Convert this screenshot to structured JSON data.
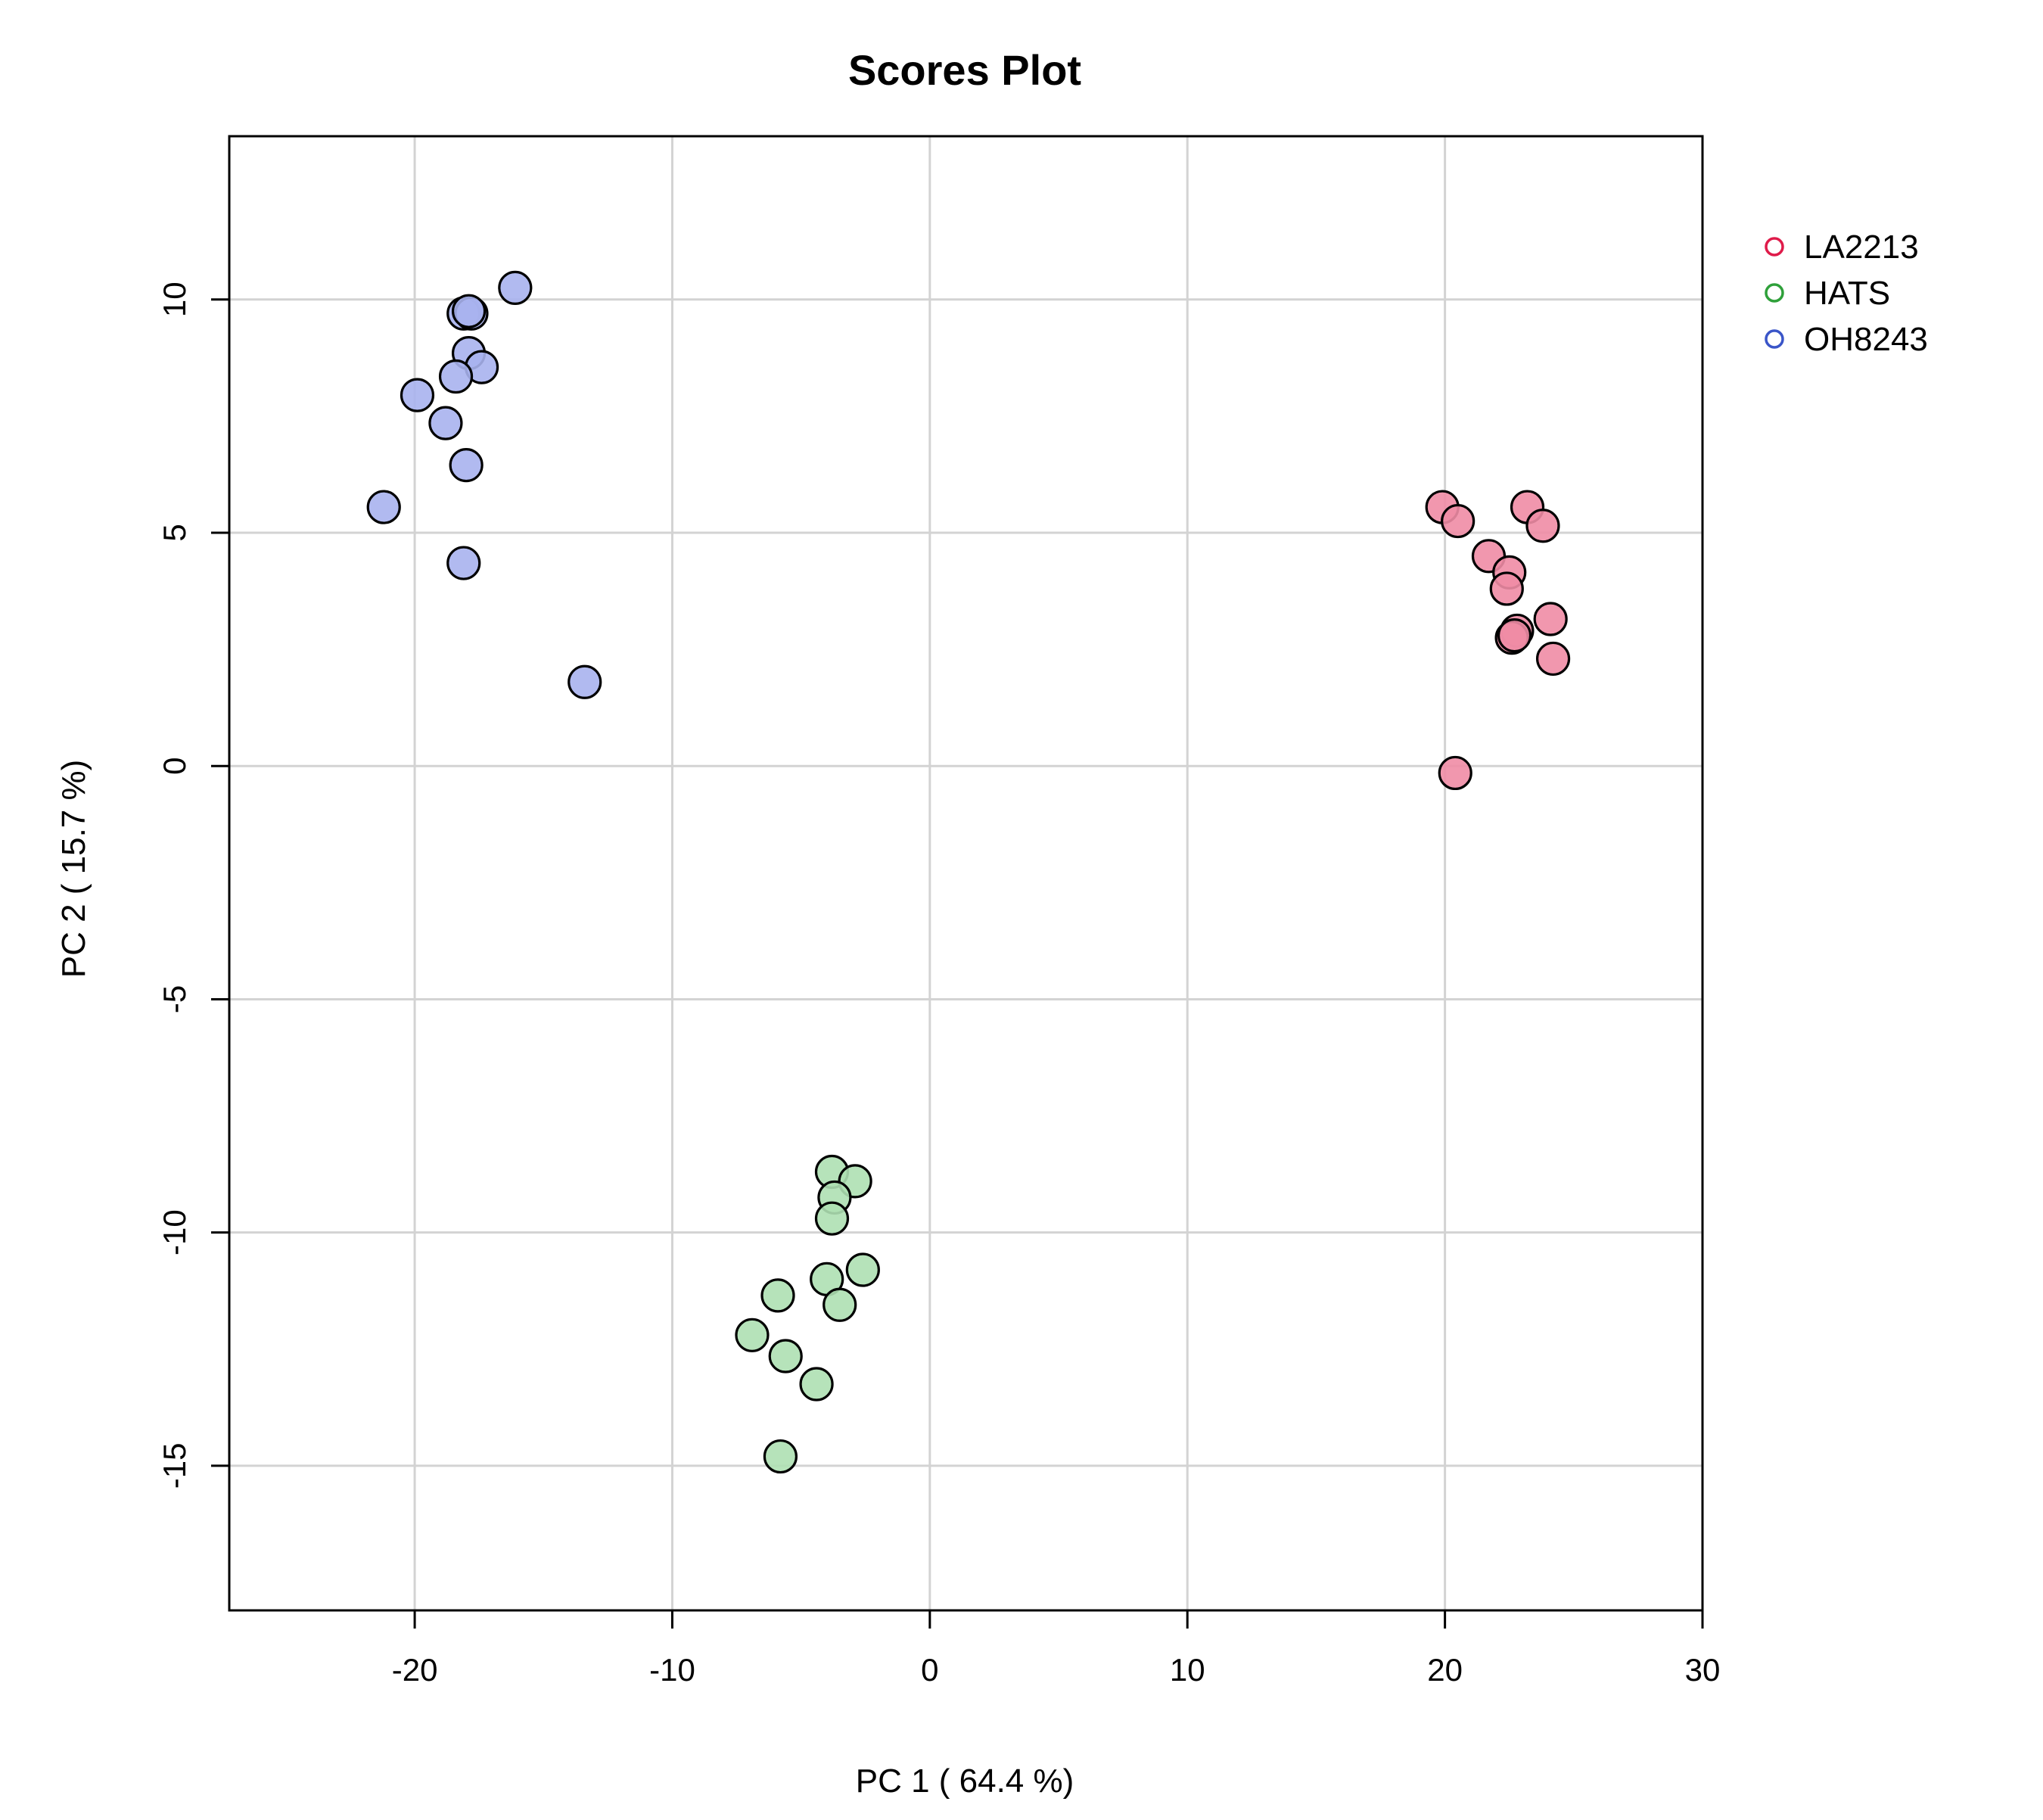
{
  "chart_data": {
    "type": "scatter",
    "title": "Scores Plot",
    "xlabel": "PC 1 ( 64.4 %)",
    "ylabel": "PC 2 ( 15.7 %)",
    "xlim": [
      -27.2,
      30
    ],
    "ylim": [
      -18.1,
      13.5
    ],
    "x_ticks": [
      -20,
      -10,
      0,
      10,
      20,
      30
    ],
    "y_ticks": [
      -15,
      -10,
      -5,
      0,
      5,
      10
    ],
    "grid": true,
    "legend_position": "top-right outside",
    "series": [
      {
        "name": "LA2213",
        "color": "#DF1B4A",
        "fill": "#F08CA5",
        "points": [
          {
            "x": 19.9,
            "y": 5.55
          },
          {
            "x": 20.5,
            "y": 5.25
          },
          {
            "x": 23.2,
            "y": 5.55
          },
          {
            "x": 23.8,
            "y": 5.15
          },
          {
            "x": 21.7,
            "y": 4.5
          },
          {
            "x": 22.5,
            "y": 4.15
          },
          {
            "x": 22.4,
            "y": 3.8
          },
          {
            "x": 24.1,
            "y": 3.15
          },
          {
            "x": 22.8,
            "y": 2.9
          },
          {
            "x": 22.6,
            "y": 2.75
          },
          {
            "x": 22.7,
            "y": 2.8
          },
          {
            "x": 24.2,
            "y": 2.3
          },
          {
            "x": 20.4,
            "y": -0.15
          }
        ]
      },
      {
        "name": "HATS",
        "color": "#2FA03A",
        "fill": "#AEE0B3",
        "points": [
          {
            "x": -3.8,
            "y": -8.7
          },
          {
            "x": -2.9,
            "y": -8.9
          },
          {
            "x": -3.7,
            "y": -9.25
          },
          {
            "x": -3.8,
            "y": -9.7
          },
          {
            "x": -2.6,
            "y": -10.8
          },
          {
            "x": -4.0,
            "y": -11.0
          },
          {
            "x": -5.9,
            "y": -11.35
          },
          {
            "x": -3.5,
            "y": -11.55
          },
          {
            "x": -6.9,
            "y": -12.2
          },
          {
            "x": -5.6,
            "y": -12.65
          },
          {
            "x": -4.4,
            "y": -13.25
          },
          {
            "x": -5.8,
            "y": -14.8
          }
        ]
      },
      {
        "name": "OH8243",
        "color": "#3A55C8",
        "fill": "#A8B3EE",
        "points": [
          {
            "x": -16.1,
            "y": 10.25
          },
          {
            "x": -18.1,
            "y": 9.7
          },
          {
            "x": -17.8,
            "y": 9.7
          },
          {
            "x": -17.9,
            "y": 9.75
          },
          {
            "x": -17.9,
            "y": 8.85
          },
          {
            "x": -17.4,
            "y": 8.55
          },
          {
            "x": -18.4,
            "y": 8.35
          },
          {
            "x": -19.9,
            "y": 7.95
          },
          {
            "x": -18.8,
            "y": 7.35
          },
          {
            "x": -18.0,
            "y": 6.45
          },
          {
            "x": -21.2,
            "y": 5.55
          },
          {
            "x": -18.1,
            "y": 4.35
          },
          {
            "x": -13.4,
            "y": 1.8
          }
        ]
      }
    ]
  }
}
